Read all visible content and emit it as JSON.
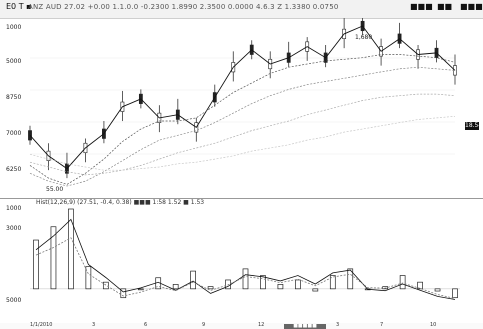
{
  "window": {
    "title": "E0 T ▪",
    "info_line": "ANZ AUD 27.02 +0.00 1.1.0.0 -0.2300 1.8990 2.3500 0.0000 4.6.3  Z 1.3380 0.0750",
    "right_labels": [
      "■■■",
      "■■",
      "■■■"
    ]
  },
  "main_panel": {
    "y_axis_labels": [
      "1000",
      "5000",
      "8750",
      "7000",
      "6250"
    ],
    "min_label": "55.00",
    "max_label": "1,680",
    "right_marker": "18.54"
  },
  "indicator_panel": {
    "header": "Hist(12,26,9)  (27.51, -0.4, 0.38)  ■■■ 1:58  1.52 ■ 1.53",
    "y_axis_labels": [
      "1000",
      "3000",
      "5000"
    ]
  },
  "bottom": {
    "dates": [
      "1/1/2010",
      "3",
      "6",
      "9",
      "12",
      "3",
      "7",
      "10"
    ],
    "tab_label": "■■■■■"
  },
  "chart_data": [
    {
      "type": "line",
      "series": [
        {
          "values": [
            79,
            66,
            58,
            71,
            80,
            97,
            102,
            90,
            92,
            84,
            103,
            122,
            133,
            124,
            128,
            135,
            128,
            143,
            148,
            132,
            140,
            130,
            131,
            120
          ]
        },
        {
          "values": [
            60,
            52,
            48,
            55,
            64,
            75,
            83,
            88,
            88,
            90,
            98,
            106,
            112,
            118,
            122,
            124,
            126,
            127,
            128,
            130,
            130,
            129,
            128,
            125
          ]
        },
        {
          "values": [
            55,
            50,
            47,
            50,
            56,
            63,
            70,
            76,
            79,
            82,
            87,
            93,
            99,
            104,
            108,
            111,
            113,
            115,
            117,
            119,
            121,
            122,
            121,
            120
          ]
        },
        {
          "values": [
            62,
            59,
            56,
            54,
            55,
            57,
            60,
            64,
            68,
            71,
            74,
            78,
            82,
            85,
            88,
            92,
            95,
            98,
            101,
            103,
            104,
            105,
            105,
            104
          ]
        },
        {
          "values": [
            67,
            64,
            61,
            59,
            57,
            57,
            58,
            59,
            61,
            62,
            64,
            66,
            69,
            71,
            73,
            76,
            78,
            81,
            83,
            85,
            87,
            89,
            90,
            91
          ]
        }
      ]
    },
    {
      "type": "bar",
      "values": [
        22,
        28,
        36,
        10,
        3,
        -4,
        0,
        5,
        2,
        8,
        1,
        4,
        9,
        6,
        2,
        4,
        -1,
        6,
        9,
        0,
        1,
        6,
        3,
        -1,
        -4
      ]
    }
  ]
}
